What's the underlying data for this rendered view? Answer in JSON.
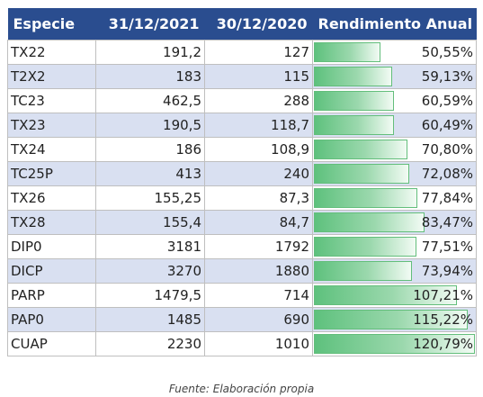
{
  "table": {
    "headers": [
      "Especie",
      "31/12/2021",
      "30/12/2020",
      "Rendimiento Anual"
    ],
    "rows": [
      {
        "especie": "TX22",
        "v2021": "191,2",
        "v2020": "127",
        "rend": "50,55%",
        "rend_value": 50.55
      },
      {
        "especie": "T2X2",
        "v2021": "183",
        "v2020": "115",
        "rend": "59,13%",
        "rend_value": 59.13
      },
      {
        "especie": "TC23",
        "v2021": "462,5",
        "v2020": "288",
        "rend": "60,59%",
        "rend_value": 60.59
      },
      {
        "especie": "TX23",
        "v2021": "190,5",
        "v2020": "118,7",
        "rend": "60,49%",
        "rend_value": 60.49
      },
      {
        "especie": "TX24",
        "v2021": "186",
        "v2020": "108,9",
        "rend": "70,80%",
        "rend_value": 70.8
      },
      {
        "especie": "TC25P",
        "v2021": "413",
        "v2020": "240",
        "rend": "72,08%",
        "rend_value": 72.08
      },
      {
        "especie": "TX26",
        "v2021": "155,25",
        "v2020": "87,3",
        "rend": "77,84%",
        "rend_value": 77.84
      },
      {
        "especie": "TX28",
        "v2021": "155,4",
        "v2020": "84,7",
        "rend": "83,47%",
        "rend_value": 83.47
      },
      {
        "especie": "DIP0",
        "v2021": "3181",
        "v2020": "1792",
        "rend": "77,51%",
        "rend_value": 77.51
      },
      {
        "especie": "DICP",
        "v2021": "3270",
        "v2020": "1880",
        "rend": "73,94%",
        "rend_value": 73.94
      },
      {
        "especie": "PARP",
        "v2021": "1479,5",
        "v2020": "714",
        "rend": "107,21%",
        "rend_value": 107.21
      },
      {
        "especie": "PAP0",
        "v2021": "1485",
        "v2020": "690",
        "rend": "115,22%",
        "rend_value": 115.22
      },
      {
        "especie": "CUAP",
        "v2021": "2230",
        "v2020": "1010",
        "rend": "120,79%",
        "rend_value": 120.79
      }
    ]
  },
  "caption": "Fuente: Elaboración propia",
  "colors": {
    "header_bg": "#2a4d8f",
    "alt_row_bg": "#d9e0f1",
    "bar": "#63be7b"
  }
}
